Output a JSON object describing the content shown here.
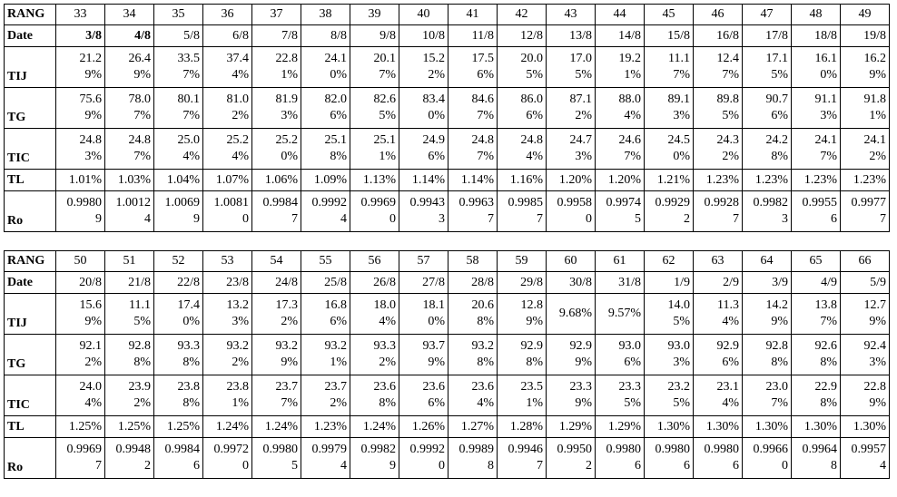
{
  "tables": [
    {
      "rows": [
        {
          "label": "RANG",
          "cells": [
            "33",
            "34",
            "35",
            "36",
            "37",
            "38",
            "39",
            "40",
            "41",
            "42",
            "43",
            "44",
            "45",
            "46",
            "47",
            "48",
            "49"
          ]
        },
        {
          "label": "Date",
          "cells": [
            "3/8",
            "4/8",
            "5/8",
            "6/8",
            "7/8",
            "8/8",
            "9/8",
            "10/8",
            "11/8",
            "12/8",
            "13/8",
            "14/8",
            "15/8",
            "16/8",
            "17/8",
            "18/8",
            "19/8"
          ]
        },
        {
          "label": "TIJ",
          "cells": [
            "21.29%",
            "26.49%",
            "33.57%",
            "37.44%",
            "22.81%",
            "24.10%",
            "20.17%",
            "15.22%",
            "17.56%",
            "20.05%",
            "17.05%",
            "19.21%",
            "11.17%",
            "12.47%",
            "17.15%",
            "16.10%",
            "16.29%"
          ]
        },
        {
          "label": "TG",
          "cells": [
            "75.69%",
            "78.07%",
            "80.17%",
            "81.02%",
            "81.93%",
            "82.06%",
            "82.65%",
            "83.40%",
            "84.67%",
            "86.06%",
            "87.12%",
            "88.04%",
            "89.13%",
            "89.85%",
            "90.76%",
            "91.13%",
            "91.81%"
          ]
        },
        {
          "label": "TIC",
          "cells": [
            "24.83%",
            "24.87%",
            "25.04%",
            "25.24%",
            "25.20%",
            "25.18%",
            "25.11%",
            "24.96%",
            "24.87%",
            "24.84%",
            "24.73%",
            "24.67%",
            "24.50%",
            "24.32%",
            "24.28%",
            "24.17%",
            "24.12%"
          ]
        },
        {
          "label": "TL",
          "cells": [
            "1.01%",
            "1.03%",
            "1.04%",
            "1.07%",
            "1.06%",
            "1.09%",
            "1.13%",
            "1.14%",
            "1.14%",
            "1.16%",
            "1.20%",
            "1.20%",
            "1.21%",
            "1.23%",
            "1.23%",
            "1.23%",
            "1.23%"
          ]
        },
        {
          "label": "Ro",
          "cells": [
            "0.99809",
            "1.00124",
            "1.00699",
            "1.00810",
            "0.99847",
            "0.99924",
            "0.99690",
            "0.99433",
            "0.99637",
            "0.99857",
            "0.99580",
            "0.99745",
            "0.99292",
            "0.99287",
            "0.99823",
            "0.99556",
            "0.99777"
          ]
        }
      ]
    },
    {
      "rows": [
        {
          "label": "RANG",
          "cells": [
            "50",
            "51",
            "52",
            "53",
            "54",
            "55",
            "56",
            "57",
            "58",
            "59",
            "60",
            "61",
            "62",
            "63",
            "64",
            "65",
            "66"
          ]
        },
        {
          "label": "Date",
          "cells": [
            "20/8",
            "21/8",
            "22/8",
            "23/8",
            "24/8",
            "25/8",
            "26/8",
            "27/8",
            "28/8",
            "29/8",
            "30/8",
            "31/8",
            "1/9",
            "2/9",
            "3/9",
            "4/9",
            "5/9"
          ]
        },
        {
          "label": "TIJ",
          "cells": [
            "15.69%",
            "11.15%",
            "17.40%",
            "13.23%",
            "17.32%",
            "16.86%",
            "18.04%",
            "18.10%",
            "20.68%",
            "12.89%",
            "9.68%",
            "9.57%",
            "14.05%",
            "11.34%",
            "14.29%",
            "13.87%",
            "12.79%"
          ]
        },
        {
          "label": "TG",
          "cells": [
            "92.12%",
            "92.88%",
            "93.38%",
            "93.22%",
            "93.29%",
            "93.21%",
            "93.32%",
            "93.79%",
            "93.28%",
            "92.98%",
            "92.99%",
            "93.06%",
            "93.03%",
            "92.96%",
            "92.88%",
            "92.68%",
            "92.43%"
          ]
        },
        {
          "label": "TIC",
          "cells": [
            "24.04%",
            "23.92%",
            "23.88%",
            "23.81%",
            "23.77%",
            "23.72%",
            "23.68%",
            "23.66%",
            "23.64%",
            "23.51%",
            "23.39%",
            "23.35%",
            "23.25%",
            "23.14%",
            "23.07%",
            "22.98%",
            "22.89%"
          ]
        },
        {
          "label": "TL",
          "cells": [
            "1.25%",
            "1.25%",
            "1.25%",
            "1.24%",
            "1.24%",
            "1.23%",
            "1.24%",
            "1.26%",
            "1.27%",
            "1.28%",
            "1.29%",
            "1.29%",
            "1.30%",
            "1.30%",
            "1.30%",
            "1.30%",
            "1.30%"
          ]
        },
        {
          "label": "Ro",
          "cells": [
            "0.99697",
            "0.99482",
            "0.99846",
            "0.99720",
            "0.99805",
            "0.99794",
            "0.99829",
            "0.99920",
            "0.99898",
            "0.99467",
            "0.99502",
            "0.99806",
            "0.99806",
            "0.99806",
            "0.99660",
            "0.99648",
            "0.99574"
          ]
        }
      ]
    }
  ]
}
